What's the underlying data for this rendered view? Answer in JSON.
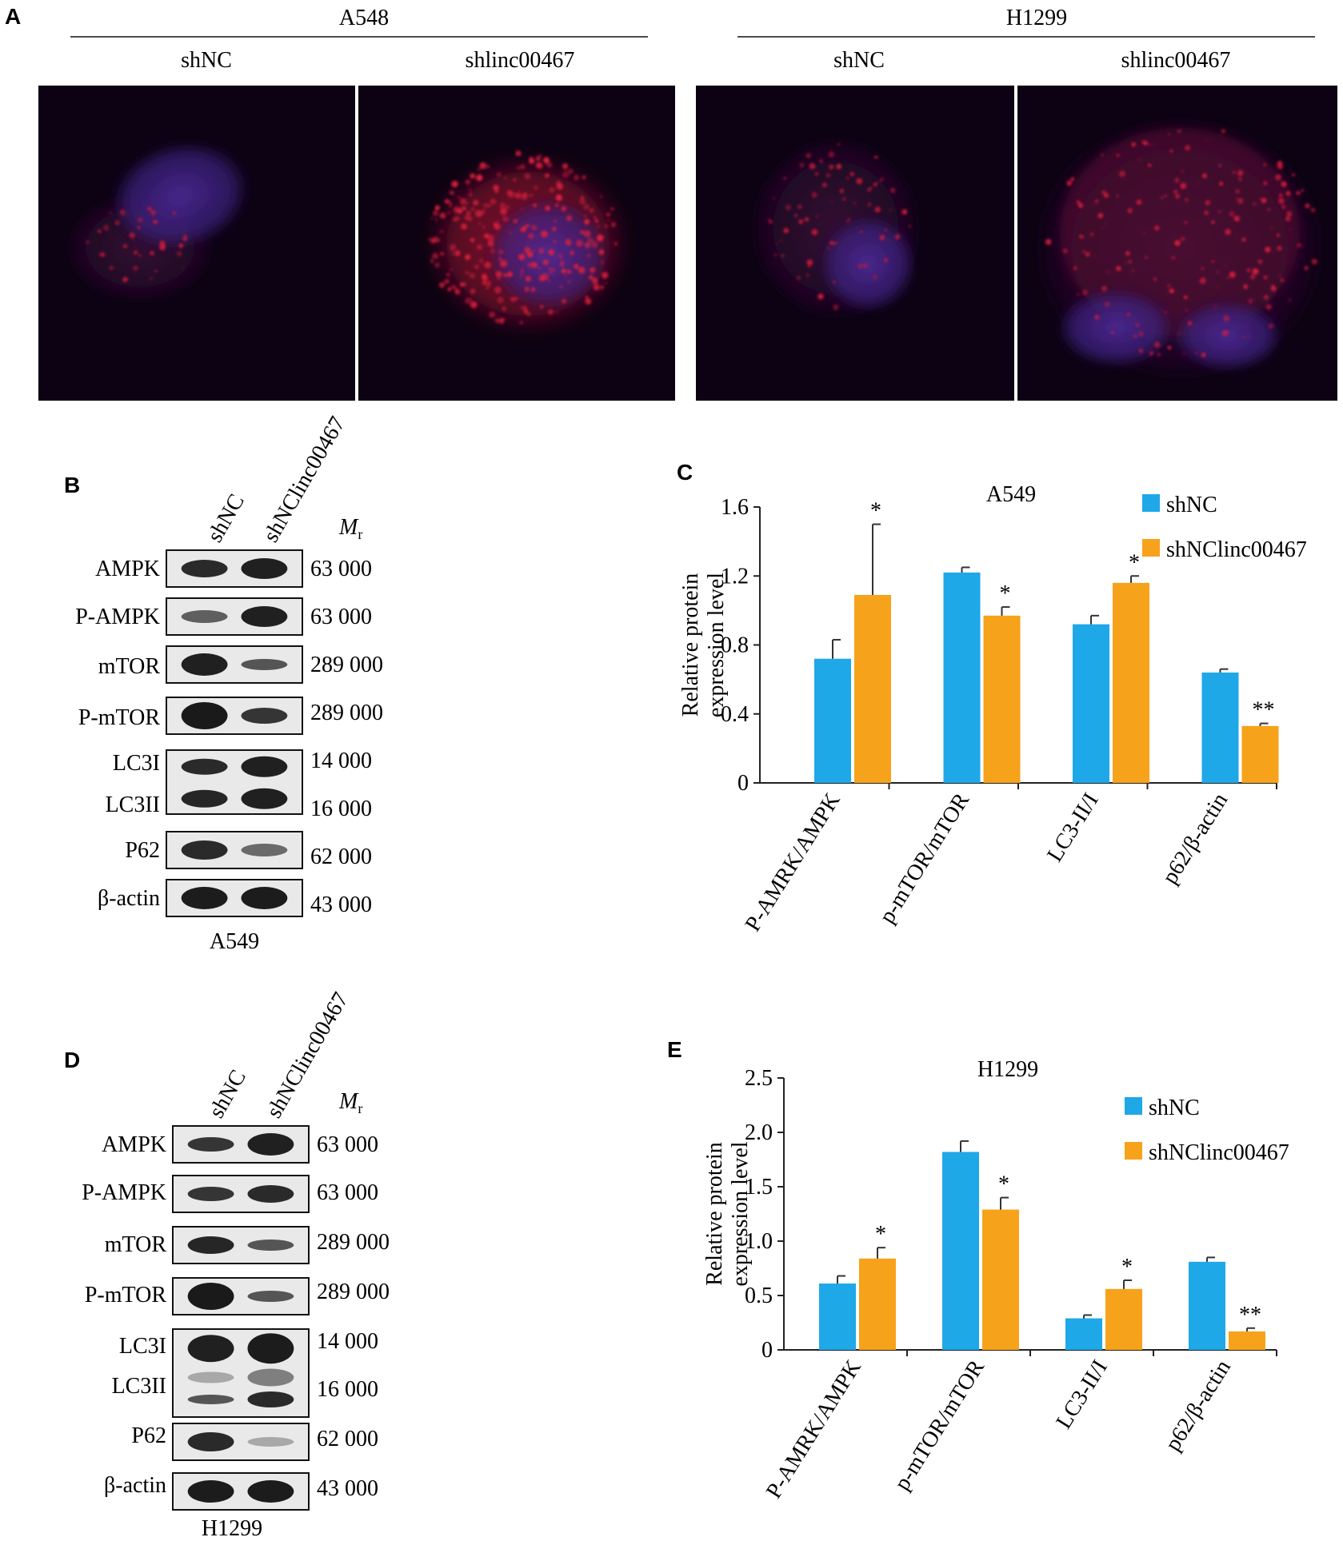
{
  "panel_a": {
    "letter": "A",
    "groups": [
      {
        "cell_line": "A548",
        "conditions": [
          "shNC",
          "shlinc00467"
        ]
      },
      {
        "cell_line": "H1299",
        "conditions": [
          "shNC",
          "shlinc00467"
        ]
      }
    ]
  },
  "panel_b": {
    "letter": "B",
    "lanes": [
      "shNC",
      "shNClinc00467"
    ],
    "mr_label": "M",
    "mr_sub": "r",
    "cell_line": "A549",
    "bands": [
      {
        "name": "AMPK",
        "mr": "63 000"
      },
      {
        "name": "P-AMPK",
        "mr": "63 000"
      },
      {
        "name": "mTOR",
        "mr": "289 000"
      },
      {
        "name": "P-mTOR",
        "mr": "289 000"
      },
      {
        "name": "LC3I",
        "mr": "14 000"
      },
      {
        "name": "LC3II",
        "mr": "16 000"
      },
      {
        "name": "P62",
        "mr": "62 000"
      },
      {
        "name": "β-actin",
        "mr": "43 000"
      }
    ]
  },
  "panel_d": {
    "letter": "D",
    "lanes": [
      "shNC",
      "shNClinc00467"
    ],
    "mr_label": "M",
    "mr_sub": "r",
    "cell_line": "H1299",
    "bands": [
      {
        "name": "AMPK",
        "mr": "63 000"
      },
      {
        "name": "P-AMPK",
        "mr": "63 000"
      },
      {
        "name": "mTOR",
        "mr": "289 000"
      },
      {
        "name": "P-mTOR",
        "mr": "289 000"
      },
      {
        "name": "LC3I",
        "mr": "14 000"
      },
      {
        "name": "LC3II",
        "mr": "16 000"
      },
      {
        "name": "P62",
        "mr": "62 000"
      },
      {
        "name": "β-actin",
        "mr": "43 000"
      }
    ]
  },
  "chart_data": [
    {
      "panel": "C",
      "type": "bar",
      "title": "A549",
      "ylabel": "Relative protein expression level",
      "ylim": [
        0,
        1.6
      ],
      "yticks": [
        "0",
        "0.4",
        "0.8",
        "1.2",
        "1.6"
      ],
      "categories": [
        "P-AMRK/AMPK",
        "p-mTOR/mTOR",
        "LC3-II/I",
        "p62/β-actin"
      ],
      "series": [
        {
          "name": "shNC",
          "color": "#1ea8e8",
          "values": [
            0.72,
            1.22,
            0.92,
            0.64
          ],
          "errors": [
            0.11,
            0.03,
            0.05,
            0.02
          ],
          "sig": [
            "",
            "",
            "",
            ""
          ]
        },
        {
          "name": "shNClinc00467",
          "color": "#f7a21b",
          "values": [
            1.09,
            0.97,
            1.16,
            0.33
          ],
          "errors": [
            0.41,
            0.05,
            0.04,
            0.015
          ],
          "sig": [
            "*",
            "*",
            "*",
            "**"
          ]
        }
      ],
      "legend": "top-right"
    },
    {
      "panel": "E",
      "type": "bar",
      "title": "H1299",
      "ylabel": "Relative protein expression level",
      "ylim": [
        0,
        2.5
      ],
      "yticks": [
        "0",
        "0.5",
        "1.0",
        "1.5",
        "2.0",
        "2.5"
      ],
      "categories": [
        "P-AMRK/AMPK",
        "p-mTOR/mTOR",
        "LC3-II/I",
        "p62/β-actin"
      ],
      "series": [
        {
          "name": "shNC",
          "color": "#1ea8e8",
          "values": [
            0.61,
            1.82,
            0.29,
            0.81
          ],
          "errors": [
            0.07,
            0.1,
            0.03,
            0.04
          ],
          "sig": [
            "",
            "",
            "",
            ""
          ]
        },
        {
          "name": "shNClinc00467",
          "color": "#f7a21b",
          "values": [
            0.84,
            1.29,
            0.56,
            0.17
          ],
          "errors": [
            0.1,
            0.11,
            0.08,
            0.03
          ],
          "sig": [
            "*",
            "*",
            "*",
            "**"
          ]
        }
      ],
      "legend": "top-right"
    }
  ]
}
